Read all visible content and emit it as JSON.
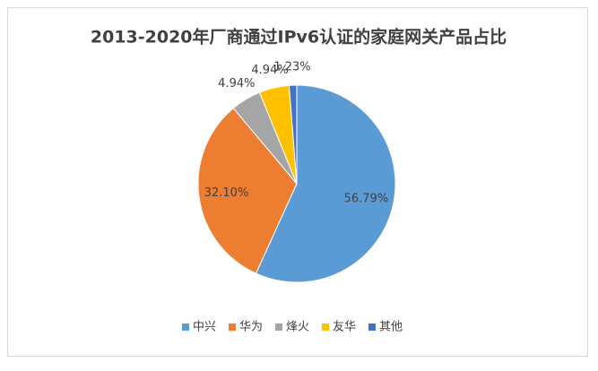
{
  "chart_data": {
    "type": "pie",
    "title": "2013-2020年厂商通过IPv6认证的家庭网关产品占比",
    "categories": [
      "中兴",
      "华为",
      "烽火",
      "友华",
      "其他"
    ],
    "values": [
      56.79,
      32.1,
      4.94,
      4.94,
      1.23
    ],
    "value_labels": [
      "56.79%",
      "32.10%",
      "4.94%",
      "4.94%",
      "1.23%"
    ],
    "colors": [
      "#5b9bd5",
      "#ed7d31",
      "#a5a5a5",
      "#ffc000",
      "#4472c4"
    ],
    "legend": "bottom"
  }
}
